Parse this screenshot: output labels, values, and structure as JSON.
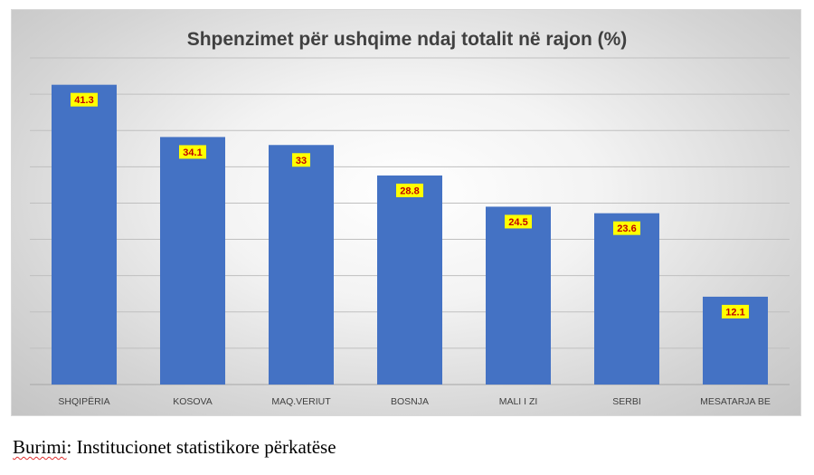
{
  "chart_data": {
    "type": "bar",
    "title": "Shpenzimet për ushqime ndaj totalit në rajon (%)",
    "categories": [
      "SHQIPËRIA",
      "KOSOVA",
      "MAQ.VERIUT",
      "BOSNJA",
      "MALI I ZI",
      "SERBI",
      "MESATARJA BE"
    ],
    "values": [
      41.3,
      34.1,
      33,
      28.8,
      24.5,
      23.6,
      12.1
    ],
    "value_labels": [
      "41.3",
      "34.1",
      "33",
      "28.8",
      "24.5",
      "23.6",
      "12.1"
    ],
    "xlabel": "",
    "ylabel": "",
    "ylim": [
      0,
      45
    ],
    "grid": true,
    "legend": "none",
    "colors": {
      "bar": "#4472c4",
      "label_background": "#ffff00",
      "label_text": "#c00000",
      "gridline": "#bfbfbf"
    }
  },
  "source": {
    "prefix": "Burimi",
    "rest": ": Institucionet statistikore përkatëse"
  }
}
